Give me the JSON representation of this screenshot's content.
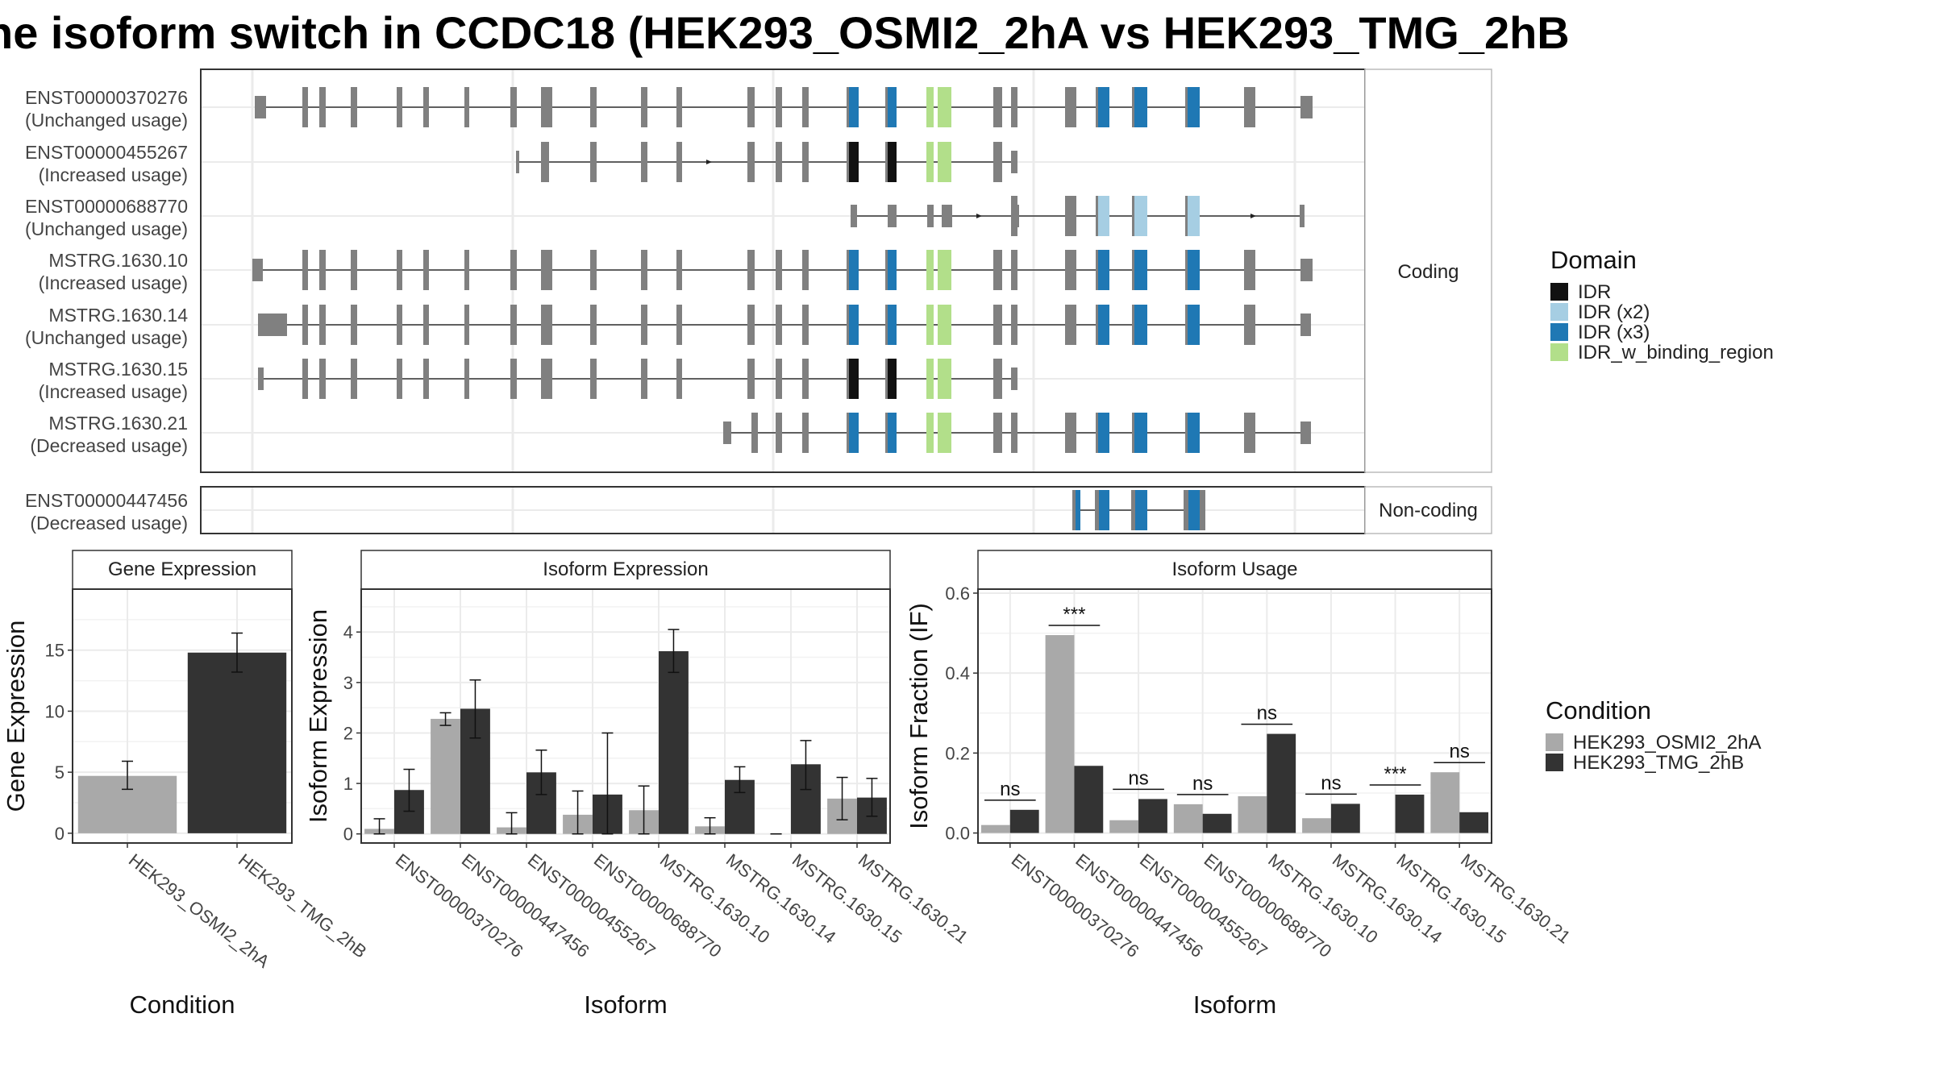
{
  "title": "ne isoform switch in CCDC18 (HEK293_OSMI2_2hA vs HEK293_TMG_2hB",
  "colors": {
    "exon": "#808080",
    "idr": "#111111",
    "idr_x2": "#a6cee3",
    "idr_x3": "#1f78b4",
    "idr_binding": "#b2df8a",
    "cond_a": "#a9a9a9",
    "cond_b": "#333333"
  },
  "structure": {
    "coding_label": "Coding",
    "noncoding_label": "Non-coding",
    "coding_isoforms": [
      {
        "id": "ENST00000370276",
        "usage": "(Unchanged usage)"
      },
      {
        "id": "ENST00000455267",
        "usage": "(Increased usage)"
      },
      {
        "id": "ENST00000688770",
        "usage": "(Unchanged usage)"
      },
      {
        "id": "MSTRG.1630.10",
        "usage": "(Increased usage)"
      },
      {
        "id": "MSTRG.1630.14",
        "usage": "(Unchanged usage)"
      },
      {
        "id": "MSTRG.1630.15",
        "usage": "(Increased usage)"
      },
      {
        "id": "MSTRG.1630.21",
        "usage": "(Decreased usage)"
      }
    ],
    "noncoding_isoforms": [
      {
        "id": "ENST00000447456",
        "usage": "(Decreased usage)"
      }
    ]
  },
  "legend_domain": {
    "title": "Domain",
    "items": [
      {
        "label": "IDR",
        "color": "#111111"
      },
      {
        "label": "IDR (x2)",
        "color": "#a6cee3"
      },
      {
        "label": "IDR (x3)",
        "color": "#1f78b4"
      },
      {
        "label": "IDR_w_binding_region",
        "color": "#b2df8a"
      }
    ]
  },
  "legend_condition": {
    "title": "Condition",
    "items": [
      {
        "label": "HEK293_OSMI2_2hA",
        "color": "#a9a9a9"
      },
      {
        "label": "HEK293_TMG_2hB",
        "color": "#333333"
      }
    ]
  },
  "chart_data": [
    {
      "type": "bar",
      "title": "Gene Expression",
      "xlabel": "Condition",
      "ylabel": "Gene Expression",
      "categories": [
        "HEK293_OSMI2_2hA",
        "HEK293_TMG_2hB"
      ],
      "values": [
        4.7,
        14.8
      ],
      "error_low": [
        3.6,
        13.2
      ],
      "error_high": [
        5.9,
        16.4
      ],
      "ylim": [
        -0.8,
        20
      ],
      "yticks": [
        0,
        5,
        10,
        15
      ]
    },
    {
      "type": "bar",
      "title": "Isoform Expression",
      "xlabel": "Isoform",
      "ylabel": "Isoform Expression",
      "categories": [
        "ENST00000370276",
        "ENST00000447456",
        "ENST00000455267",
        "ENST00000688770",
        "MSTRG.1630.10",
        "MSTRG.1630.14",
        "MSTRG.1630.15",
        "MSTRG.1630.21"
      ],
      "series": [
        {
          "name": "HEK293_OSMI2_2hA",
          "values": [
            0.1,
            2.28,
            0.13,
            0.38,
            0.47,
            0.15,
            0.0,
            0.7
          ],
          "error_low": [
            0.0,
            2.15,
            0.0,
            0.0,
            0.0,
            0.0,
            0.0,
            0.28
          ],
          "error_high": [
            0.3,
            2.4,
            0.42,
            0.85,
            0.95,
            0.32,
            0.0,
            1.12
          ]
        },
        {
          "name": "HEK293_TMG_2hB",
          "values": [
            0.87,
            2.48,
            1.22,
            0.78,
            3.62,
            1.07,
            1.38,
            0.72
          ],
          "error_low": [
            0.45,
            1.9,
            0.78,
            0.0,
            3.2,
            0.82,
            0.88,
            0.35
          ],
          "error_high": [
            1.28,
            3.05,
            1.66,
            2.0,
            4.05,
            1.33,
            1.85,
            1.1
          ]
        }
      ],
      "ylim": [
        -0.18,
        4.85
      ],
      "yticks": [
        0,
        1,
        2,
        3,
        4
      ]
    },
    {
      "type": "bar",
      "title": "Isoform Usage",
      "xlabel": "Isoform",
      "ylabel": "Isoform Fraction (IF)",
      "categories": [
        "ENST00000370276",
        "ENST00000447456",
        "ENST00000455267",
        "ENST00000688770",
        "MSTRG.1630.10",
        "MSTRG.1630.14",
        "MSTRG.1630.15",
        "MSTRG.1630.21"
      ],
      "series": [
        {
          "name": "HEK293_OSMI2_2hA",
          "values": [
            0.02,
            0.495,
            0.032,
            0.072,
            0.092,
            0.037,
            0.0,
            0.152
          ]
        },
        {
          "name": "HEK293_TMG_2hB",
          "values": [
            0.058,
            0.168,
            0.085,
            0.048,
            0.248,
            0.073,
            0.096,
            0.052
          ]
        }
      ],
      "significance": [
        "ns",
        "***",
        "ns",
        "ns",
        "ns",
        "ns",
        "***",
        "ns"
      ],
      "ylim": [
        -0.025,
        0.61
      ],
      "yticks": [
        0.0,
        0.2,
        0.4,
        0.6
      ],
      "ytick_labels": [
        "0.0",
        "0.2",
        "0.4",
        "0.6"
      ]
    }
  ]
}
